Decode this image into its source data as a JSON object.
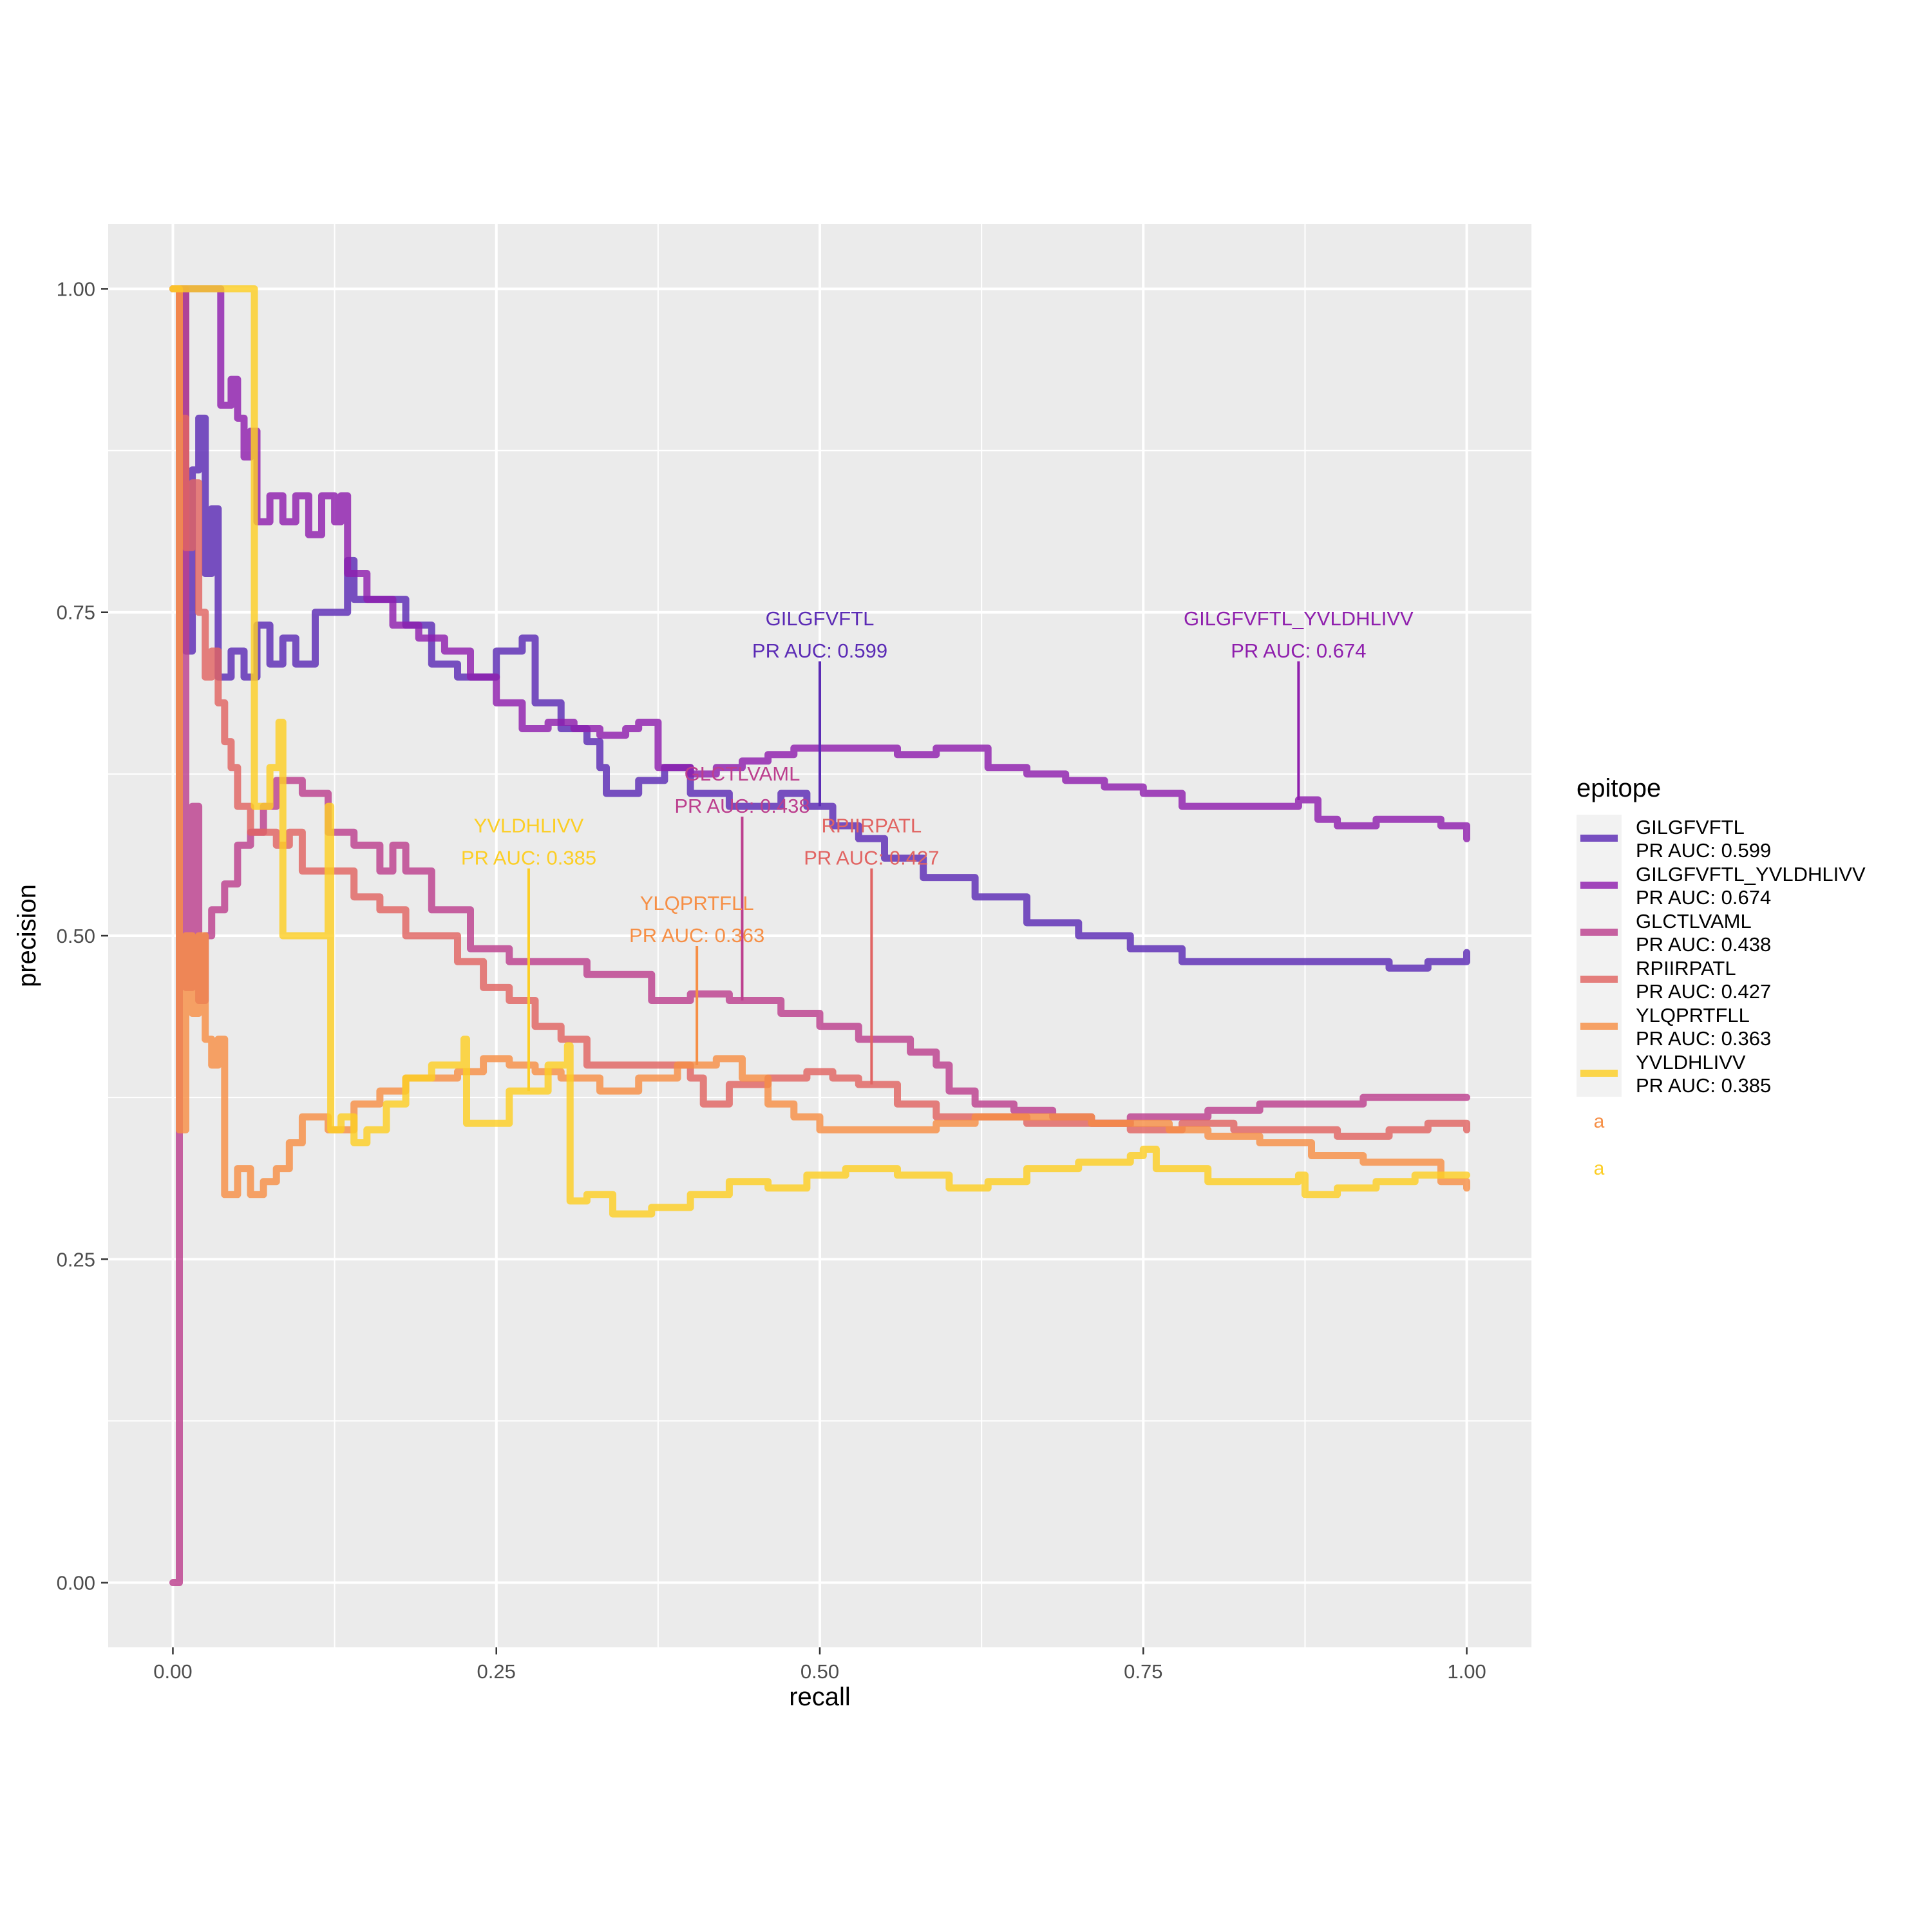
{
  "chart_data": {
    "type": "line",
    "title": "",
    "xlabel": "recall",
    "ylabel": "precision",
    "xlim": [
      -0.05,
      1.05
    ],
    "ylim": [
      -0.05,
      1.05
    ],
    "x_ticks": [
      "0.00",
      "0.25",
      "0.50",
      "0.75",
      "1.00"
    ],
    "y_ticks": [
      "0.00",
      "0.25",
      "0.50",
      "0.75",
      "1.00"
    ],
    "grid": true,
    "legend": {
      "title": "epitope",
      "placement": "right",
      "extra_keys": [
        {
          "glyph": "a",
          "color": "#F68F46"
        },
        {
          "glyph": "a",
          "color": "#FCCE25"
        }
      ]
    },
    "series": [
      {
        "name": "GILGFVFTL",
        "auc_label": "PR AUC: 0.599",
        "color": "#5B2BB5",
        "label_at": [
          0.5,
          0.72
        ],
        "points": [
          [
            0,
            1.0
          ],
          [
            0.01,
            0.72
          ],
          [
            0.015,
            0.86
          ],
          [
            0.02,
            0.9
          ],
          [
            0.025,
            0.78
          ],
          [
            0.03,
            0.83
          ],
          [
            0.035,
            0.7
          ],
          [
            0.045,
            0.72
          ],
          [
            0.055,
            0.7
          ],
          [
            0.065,
            0.74
          ],
          [
            0.075,
            0.71
          ],
          [
            0.085,
            0.73
          ],
          [
            0.095,
            0.71
          ],
          [
            0.11,
            0.75
          ],
          [
            0.135,
            0.79
          ],
          [
            0.14,
            0.76
          ],
          [
            0.16,
            0.76
          ],
          [
            0.18,
            0.74
          ],
          [
            0.2,
            0.71
          ],
          [
            0.22,
            0.7
          ],
          [
            0.25,
            0.72
          ],
          [
            0.27,
            0.73
          ],
          [
            0.28,
            0.68
          ],
          [
            0.3,
            0.66
          ],
          [
            0.32,
            0.65
          ],
          [
            0.33,
            0.63
          ],
          [
            0.335,
            0.61
          ],
          [
            0.36,
            0.62
          ],
          [
            0.38,
            0.63
          ],
          [
            0.4,
            0.61
          ],
          [
            0.43,
            0.6
          ],
          [
            0.47,
            0.61
          ],
          [
            0.49,
            0.6
          ],
          [
            0.51,
            0.585
          ],
          [
            0.53,
            0.575
          ],
          [
            0.55,
            0.56
          ],
          [
            0.58,
            0.545
          ],
          [
            0.62,
            0.53
          ],
          [
            0.66,
            0.51
          ],
          [
            0.7,
            0.5
          ],
          [
            0.74,
            0.49
          ],
          [
            0.78,
            0.48
          ],
          [
            0.82,
            0.48
          ],
          [
            0.86,
            0.48
          ],
          [
            0.9,
            0.48
          ],
          [
            0.94,
            0.475
          ],
          [
            0.97,
            0.48
          ],
          [
            1.0,
            0.487
          ]
        ]
      },
      {
        "name": "GILGFVFTL_YVLDHLIVV",
        "auc_label": "PR AUC: 0.674",
        "color": "#8F1FAD",
        "label_at": [
          0.87,
          0.72
        ],
        "points": [
          [
            0,
            1.0
          ],
          [
            0.035,
            1.0
          ],
          [
            0.037,
            0.91
          ],
          [
            0.045,
            0.93
          ],
          [
            0.05,
            0.9
          ],
          [
            0.055,
            0.87
          ],
          [
            0.06,
            0.89
          ],
          [
            0.065,
            0.82
          ],
          [
            0.075,
            0.84
          ],
          [
            0.085,
            0.82
          ],
          [
            0.095,
            0.84
          ],
          [
            0.105,
            0.81
          ],
          [
            0.115,
            0.84
          ],
          [
            0.125,
            0.82
          ],
          [
            0.13,
            0.84
          ],
          [
            0.135,
            0.78
          ],
          [
            0.15,
            0.76
          ],
          [
            0.17,
            0.74
          ],
          [
            0.19,
            0.73
          ],
          [
            0.21,
            0.72
          ],
          [
            0.23,
            0.7
          ],
          [
            0.25,
            0.68
          ],
          [
            0.27,
            0.66
          ],
          [
            0.29,
            0.665
          ],
          [
            0.31,
            0.66
          ],
          [
            0.33,
            0.655
          ],
          [
            0.35,
            0.66
          ],
          [
            0.36,
            0.665
          ],
          [
            0.375,
            0.63
          ],
          [
            0.4,
            0.625
          ],
          [
            0.42,
            0.63
          ],
          [
            0.44,
            0.635
          ],
          [
            0.46,
            0.64
          ],
          [
            0.48,
            0.645
          ],
          [
            0.5,
            0.645
          ],
          [
            0.53,
            0.645
          ],
          [
            0.56,
            0.64
          ],
          [
            0.59,
            0.645
          ],
          [
            0.61,
            0.645
          ],
          [
            0.63,
            0.63
          ],
          [
            0.66,
            0.625
          ],
          [
            0.69,
            0.62
          ],
          [
            0.72,
            0.615
          ],
          [
            0.75,
            0.61
          ],
          [
            0.78,
            0.6
          ],
          [
            0.81,
            0.6
          ],
          [
            0.84,
            0.6
          ],
          [
            0.87,
            0.605
          ],
          [
            0.885,
            0.59
          ],
          [
            0.9,
            0.585
          ],
          [
            0.93,
            0.59
          ],
          [
            0.96,
            0.59
          ],
          [
            0.98,
            0.585
          ],
          [
            1.0,
            0.575
          ]
        ]
      },
      {
        "name": "GLCTLVAML",
        "auc_label": "PR AUC: 0.438",
        "color": "#BC3F8E",
        "label_at": [
          0.44,
          0.6
        ],
        "points": [
          [
            0,
            0.0
          ],
          [
            0.005,
            1.0
          ],
          [
            0.01,
            0.46
          ],
          [
            0.015,
            0.6
          ],
          [
            0.02,
            0.45
          ],
          [
            0.025,
            0.5
          ],
          [
            0.03,
            0.52
          ],
          [
            0.04,
            0.54
          ],
          [
            0.05,
            0.57
          ],
          [
            0.06,
            0.58
          ],
          [
            0.07,
            0.6
          ],
          [
            0.08,
            0.62
          ],
          [
            0.1,
            0.61
          ],
          [
            0.12,
            0.58
          ],
          [
            0.14,
            0.57
          ],
          [
            0.16,
            0.55
          ],
          [
            0.17,
            0.57
          ],
          [
            0.18,
            0.55
          ],
          [
            0.2,
            0.52
          ],
          [
            0.23,
            0.49
          ],
          [
            0.26,
            0.48
          ],
          [
            0.29,
            0.48
          ],
          [
            0.32,
            0.47
          ],
          [
            0.35,
            0.47
          ],
          [
            0.37,
            0.45
          ],
          [
            0.4,
            0.455
          ],
          [
            0.43,
            0.45
          ],
          [
            0.45,
            0.45
          ],
          [
            0.47,
            0.44
          ],
          [
            0.5,
            0.43
          ],
          [
            0.53,
            0.42
          ],
          [
            0.55,
            0.42
          ],
          [
            0.57,
            0.41
          ],
          [
            0.59,
            0.4
          ],
          [
            0.6,
            0.38
          ],
          [
            0.62,
            0.37
          ],
          [
            0.65,
            0.365
          ],
          [
            0.68,
            0.36
          ],
          [
            0.71,
            0.355
          ],
          [
            0.74,
            0.36
          ],
          [
            0.77,
            0.36
          ],
          [
            0.8,
            0.365
          ],
          [
            0.84,
            0.37
          ],
          [
            0.88,
            0.37
          ],
          [
            0.92,
            0.375
          ],
          [
            0.96,
            0.375
          ],
          [
            1.0,
            0.375
          ]
        ]
      },
      {
        "name": "RPIIRPATL",
        "auc_label": "PR AUC: 0.427",
        "color": "#E16462",
        "label_at": [
          0.54,
          0.56
        ],
        "points": [
          [
            0,
            1.0
          ],
          [
            0.005,
            0.9
          ],
          [
            0.01,
            0.8
          ],
          [
            0.015,
            0.85
          ],
          [
            0.02,
            0.75
          ],
          [
            0.025,
            0.7
          ],
          [
            0.03,
            0.72
          ],
          [
            0.035,
            0.68
          ],
          [
            0.04,
            0.65
          ],
          [
            0.045,
            0.63
          ],
          [
            0.05,
            0.6
          ],
          [
            0.06,
            0.58
          ],
          [
            0.07,
            0.58
          ],
          [
            0.08,
            0.57
          ],
          [
            0.09,
            0.58
          ],
          [
            0.1,
            0.55
          ],
          [
            0.12,
            0.55
          ],
          [
            0.14,
            0.53
          ],
          [
            0.16,
            0.52
          ],
          [
            0.18,
            0.5
          ],
          [
            0.2,
            0.5
          ],
          [
            0.22,
            0.48
          ],
          [
            0.24,
            0.46
          ],
          [
            0.26,
            0.45
          ],
          [
            0.28,
            0.43
          ],
          [
            0.3,
            0.42
          ],
          [
            0.32,
            0.4
          ],
          [
            0.35,
            0.4
          ],
          [
            0.38,
            0.4
          ],
          [
            0.4,
            0.39
          ],
          [
            0.41,
            0.37
          ],
          [
            0.43,
            0.385
          ],
          [
            0.46,
            0.39
          ],
          [
            0.49,
            0.395
          ],
          [
            0.51,
            0.39
          ],
          [
            0.53,
            0.385
          ],
          [
            0.56,
            0.37
          ],
          [
            0.59,
            0.36
          ],
          [
            0.62,
            0.36
          ],
          [
            0.66,
            0.355
          ],
          [
            0.7,
            0.355
          ],
          [
            0.74,
            0.35
          ],
          [
            0.78,
            0.355
          ],
          [
            0.82,
            0.35
          ],
          [
            0.86,
            0.35
          ],
          [
            0.9,
            0.345
          ],
          [
            0.94,
            0.35
          ],
          [
            0.97,
            0.355
          ],
          [
            1.0,
            0.35
          ]
        ]
      },
      {
        "name": "YLQPRTFLL",
        "auc_label": "PR AUC: 0.363",
        "color": "#F68F46",
        "label_at": [
          0.405,
          0.5
        ],
        "points": [
          [
            0,
            1.0
          ],
          [
            0.005,
            0.35
          ],
          [
            0.01,
            0.5
          ],
          [
            0.015,
            0.44
          ],
          [
            0.02,
            0.5
          ],
          [
            0.025,
            0.42
          ],
          [
            0.03,
            0.4
          ],
          [
            0.035,
            0.42
          ],
          [
            0.04,
            0.3
          ],
          [
            0.05,
            0.32
          ],
          [
            0.06,
            0.3
          ],
          [
            0.07,
            0.31
          ],
          [
            0.08,
            0.32
          ],
          [
            0.09,
            0.34
          ],
          [
            0.1,
            0.36
          ],
          [
            0.12,
            0.35
          ],
          [
            0.14,
            0.37
          ],
          [
            0.16,
            0.38
          ],
          [
            0.18,
            0.39
          ],
          [
            0.2,
            0.39
          ],
          [
            0.22,
            0.395
          ],
          [
            0.24,
            0.405
          ],
          [
            0.26,
            0.4
          ],
          [
            0.28,
            0.395
          ],
          [
            0.3,
            0.39
          ],
          [
            0.33,
            0.38
          ],
          [
            0.36,
            0.39
          ],
          [
            0.39,
            0.4
          ],
          [
            0.42,
            0.405
          ],
          [
            0.44,
            0.39
          ],
          [
            0.46,
            0.37
          ],
          [
            0.48,
            0.36
          ],
          [
            0.5,
            0.35
          ],
          [
            0.53,
            0.35
          ],
          [
            0.56,
            0.35
          ],
          [
            0.59,
            0.355
          ],
          [
            0.62,
            0.36
          ],
          [
            0.65,
            0.36
          ],
          [
            0.68,
            0.36
          ],
          [
            0.71,
            0.355
          ],
          [
            0.74,
            0.355
          ],
          [
            0.77,
            0.35
          ],
          [
            0.8,
            0.345
          ],
          [
            0.84,
            0.34
          ],
          [
            0.88,
            0.33
          ],
          [
            0.92,
            0.325
          ],
          [
            0.95,
            0.325
          ],
          [
            0.98,
            0.31
          ],
          [
            1.0,
            0.305
          ]
        ]
      },
      {
        "name": "YVLDHLIVV",
        "auc_label": "PR AUC: 0.385",
        "color": "#FCCE25",
        "label_at": [
          0.275,
          0.56
        ],
        "points": [
          [
            0,
            1.0
          ],
          [
            0.06,
            1.0
          ],
          [
            0.063,
            0.6
          ],
          [
            0.075,
            0.63
          ],
          [
            0.082,
            0.665
          ],
          [
            0.085,
            0.5
          ],
          [
            0.12,
            0.6
          ],
          [
            0.122,
            0.35
          ],
          [
            0.13,
            0.36
          ],
          [
            0.14,
            0.34
          ],
          [
            0.15,
            0.35
          ],
          [
            0.165,
            0.37
          ],
          [
            0.18,
            0.39
          ],
          [
            0.2,
            0.4
          ],
          [
            0.225,
            0.42
          ],
          [
            0.227,
            0.355
          ],
          [
            0.26,
            0.38
          ],
          [
            0.29,
            0.4
          ],
          [
            0.305,
            0.415
          ],
          [
            0.307,
            0.295
          ],
          [
            0.32,
            0.3
          ],
          [
            0.34,
            0.285
          ],
          [
            0.37,
            0.29
          ],
          [
            0.4,
            0.3
          ],
          [
            0.43,
            0.31
          ],
          [
            0.46,
            0.305
          ],
          [
            0.49,
            0.315
          ],
          [
            0.52,
            0.32
          ],
          [
            0.56,
            0.315
          ],
          [
            0.6,
            0.305
          ],
          [
            0.63,
            0.31
          ],
          [
            0.66,
            0.32
          ],
          [
            0.7,
            0.325
          ],
          [
            0.74,
            0.33
          ],
          [
            0.75,
            0.335
          ],
          [
            0.76,
            0.32
          ],
          [
            0.8,
            0.31
          ],
          [
            0.84,
            0.31
          ],
          [
            0.87,
            0.315
          ],
          [
            0.875,
            0.3
          ],
          [
            0.9,
            0.305
          ],
          [
            0.93,
            0.31
          ],
          [
            0.96,
            0.315
          ],
          [
            1.0,
            0.315
          ]
        ]
      }
    ]
  }
}
